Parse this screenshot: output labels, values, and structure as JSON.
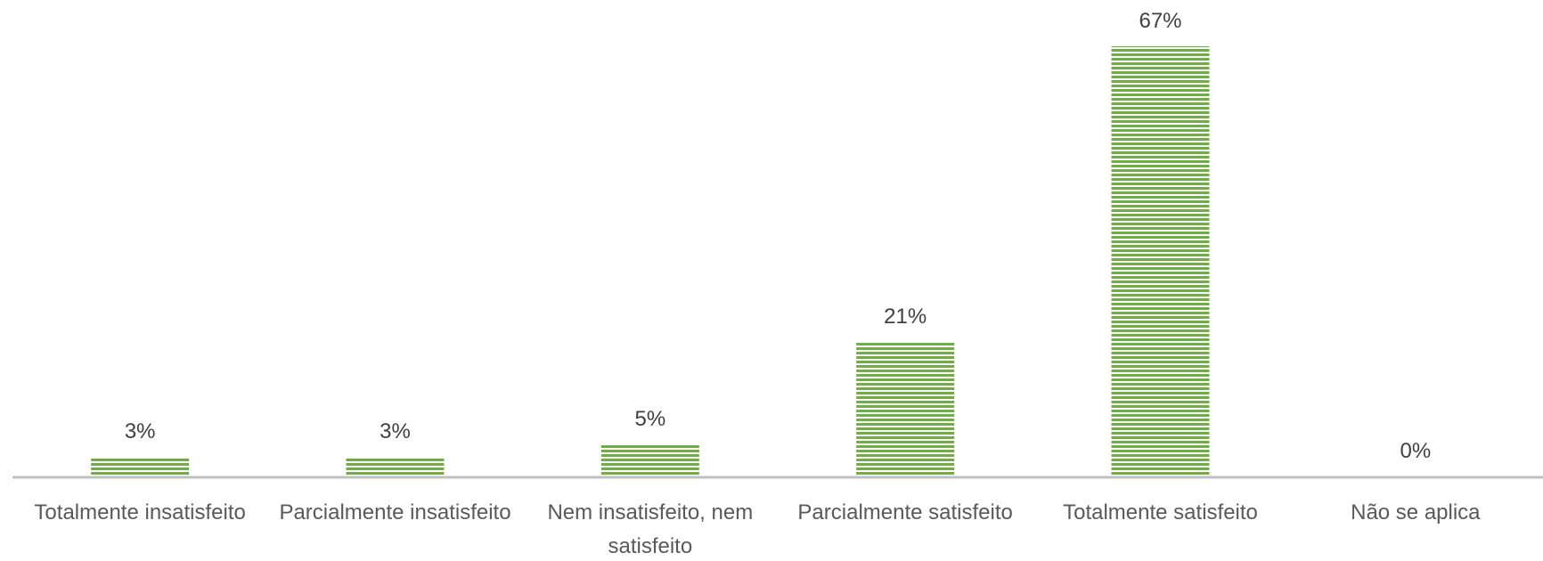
{
  "chart_data": {
    "type": "bar",
    "categories": [
      "Totalmente insatisfeito",
      "Parcialmente insatisfeito",
      "Nem insatisfeito, nem satisfeito",
      "Parcialmente satisfeito",
      "Totalmente satisfeito",
      "Não se aplica"
    ],
    "values": [
      3,
      3,
      5,
      21,
      67,
      0
    ],
    "value_labels": [
      "3%",
      "3%",
      "5%",
      "21%",
      "67%",
      "0%"
    ],
    "color": "#70ad47"
  }
}
